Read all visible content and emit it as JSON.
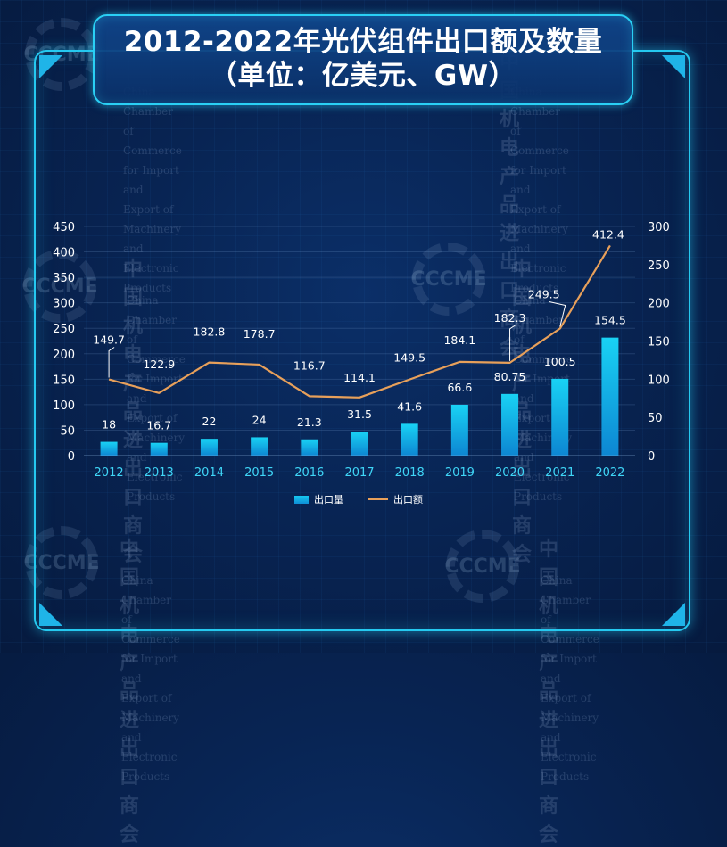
{
  "title": {
    "line1": "2012-2022年光伏组件出口额及数量",
    "line2": "（单位：亿美元、GW）"
  },
  "watermark": {
    "cn": "中国机电产品进出口商会",
    "logo": "CCCME",
    "en1": "China Chamber of Commerce for Import and",
    "en2": "Export of Machinery and Electronic Products"
  },
  "colors": {
    "bar_top": "#19d2f4",
    "bar_bottom": "#0d86d2",
    "line": "#e8a05a",
    "axis_label": "#ffffff",
    "x_tick": "#3fd6f7",
    "frame": "#25c9f0"
  },
  "chart_data": {
    "type": "bar",
    "categories": [
      "2012",
      "2013",
      "2014",
      "2015",
      "2016",
      "2017",
      "2018",
      "2019",
      "2020",
      "2021",
      "2022"
    ],
    "series": [
      {
        "name": "出口量",
        "type": "bar",
        "axis": "right",
        "values": [
          18,
          16.7,
          22,
          24,
          21.3,
          31.5,
          41.6,
          66.6,
          80.75,
          100.5,
          154.5
        ],
        "labels": [
          "18",
          "16.7",
          "22",
          "24",
          "21.3",
          "31.5",
          "41.6",
          "66.6",
          "80.75",
          "100.5",
          "154.5"
        ]
      },
      {
        "name": "出口额",
        "type": "line",
        "axis": "left",
        "values": [
          149.7,
          122.9,
          182.8,
          178.7,
          116.7,
          114.1,
          149.5,
          184.1,
          182.3,
          249.5,
          412.4
        ],
        "labels": [
          "149.7",
          "122.9",
          "182.8",
          "178.7",
          "116.7",
          "114.1",
          "149.5",
          "184.1",
          "182.3",
          "249.5",
          "412.4"
        ]
      }
    ],
    "y_left": {
      "ylim": [
        0,
        450
      ],
      "ticks": [
        "0",
        "50",
        "100",
        "150",
        "200",
        "250",
        "300",
        "350",
        "400",
        "450"
      ]
    },
    "y_right": {
      "ylim": [
        0,
        300
      ],
      "ticks": [
        "0",
        "50",
        "100",
        "150",
        "200",
        "250",
        "300"
      ]
    },
    "legend": {
      "position": "bottom-center",
      "items": [
        "出口量",
        "出口额"
      ]
    },
    "grid": true
  }
}
